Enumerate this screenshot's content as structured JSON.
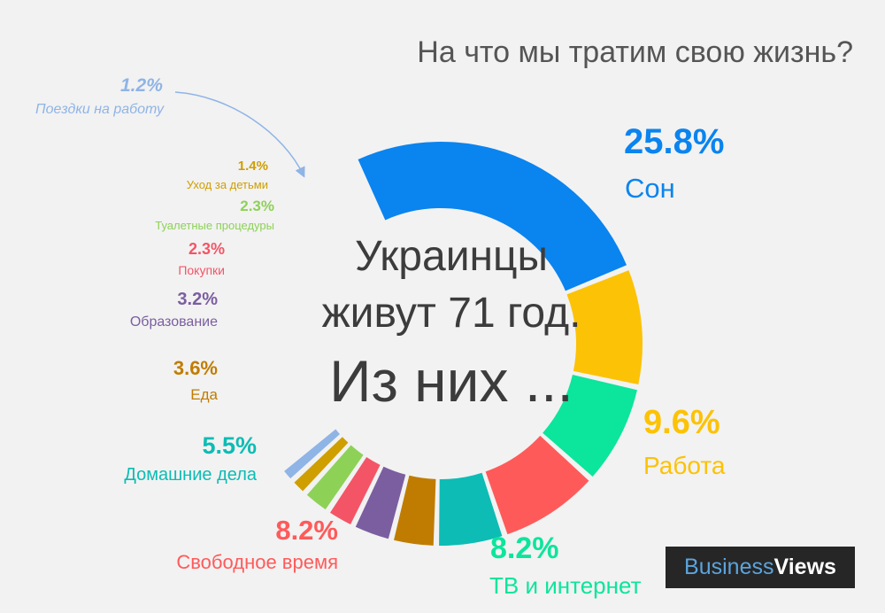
{
  "title": "На что мы тратим свою жизнь?",
  "center": {
    "line1": "Украинцы",
    "line2": "живут 71 год.",
    "line3": "Из них ..."
  },
  "logo": {
    "part1": "Business",
    "part2": "Views"
  },
  "chart_data": {
    "type": "pie",
    "donut": true,
    "title": "На что мы тратим свою жизнь?",
    "unit": "%",
    "slices": [
      {
        "label": "Сон",
        "value": 25.8,
        "value_label": "25.8%",
        "color": "#0a84ef"
      },
      {
        "label": "Работа",
        "value": 9.6,
        "value_label": "9.6%",
        "color": "#fcc206"
      },
      {
        "label": "ТВ и интернет",
        "value": 8.2,
        "value_label": "8.2%",
        "color": "#0ce59c"
      },
      {
        "label": "Свободное время",
        "value": 8.2,
        "value_label": "8.2%",
        "color": "#ff5a5a"
      },
      {
        "label": "Домашние дела",
        "value": 5.5,
        "value_label": "5.5%",
        "color": "#0dbcb4"
      },
      {
        "label": "Еда",
        "value": 3.6,
        "value_label": "3.6%",
        "color": "#c07c00"
      },
      {
        "label": "Образование",
        "value": 3.2,
        "value_label": "3.2%",
        "color": "#7b5ea0"
      },
      {
        "label": "Покупки",
        "value": 2.3,
        "value_label": "2.3%",
        "color": "#f45566"
      },
      {
        "label": "Туалетные процедуры",
        "value": 2.3,
        "value_label": "2.3%",
        "color": "#8ed157"
      },
      {
        "label": "Уход за детьми",
        "value": 1.4,
        "value_label": "1.4%",
        "color": "#cf9e00"
      },
      {
        "label": "Поездки на работу",
        "value": 1.2,
        "value_label": "1.2%",
        "color": "#8fb4e6"
      }
    ]
  }
}
